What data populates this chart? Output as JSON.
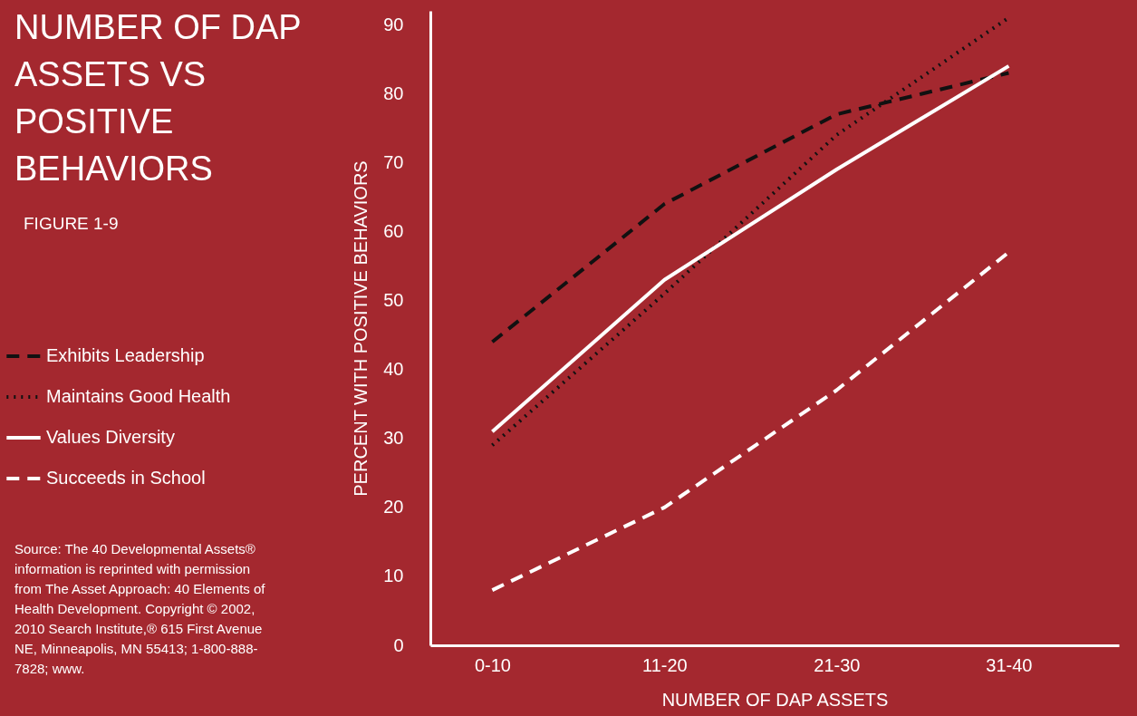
{
  "chart_data": {
    "type": "line",
    "title": "NUMBER OF DAP ASSETS VS POSITIVE BEHAVIORS",
    "subtitle": "FIGURE 1-9",
    "xlabel": "NUMBER OF DAP ASSETS",
    "ylabel": "PERCENT WITH POSITIVE BEHAVIORS",
    "categories": [
      "0-10",
      "11-20",
      "21-30",
      "31-40"
    ],
    "series": [
      {
        "name": "Exhibits Leadership",
        "color": "#111111",
        "line_style": "dashed",
        "values": [
          44,
          64,
          77,
          83
        ]
      },
      {
        "name": "Maintains Good Health",
        "color": "#111111",
        "line_style": "dotted",
        "values": [
          29,
          51,
          74,
          91
        ]
      },
      {
        "name": "Values Diversity",
        "color": "#ffffff",
        "line_style": "solid",
        "values": [
          31,
          53,
          69,
          84
        ]
      },
      {
        "name": "Succeeds in School",
        "color": "#ffffff",
        "line_style": "dashed",
        "values": [
          8,
          20,
          37,
          57
        ]
      }
    ],
    "ylim": [
      0,
      92
    ],
    "yticks": [
      0,
      10,
      20,
      30,
      40,
      50,
      60,
      70,
      80,
      90
    ],
    "legend": "left",
    "annotations": [
      "Source: The 40 Developmental Assets® information is reprinted with permission from The Asset Approach: 40 Elements of Health Development. Copyright © 2002, 2010 Search Institute,® 615 First Avenue NE, Minneapolis, MN 55413; 1-800-888-7828; www."
    ]
  }
}
